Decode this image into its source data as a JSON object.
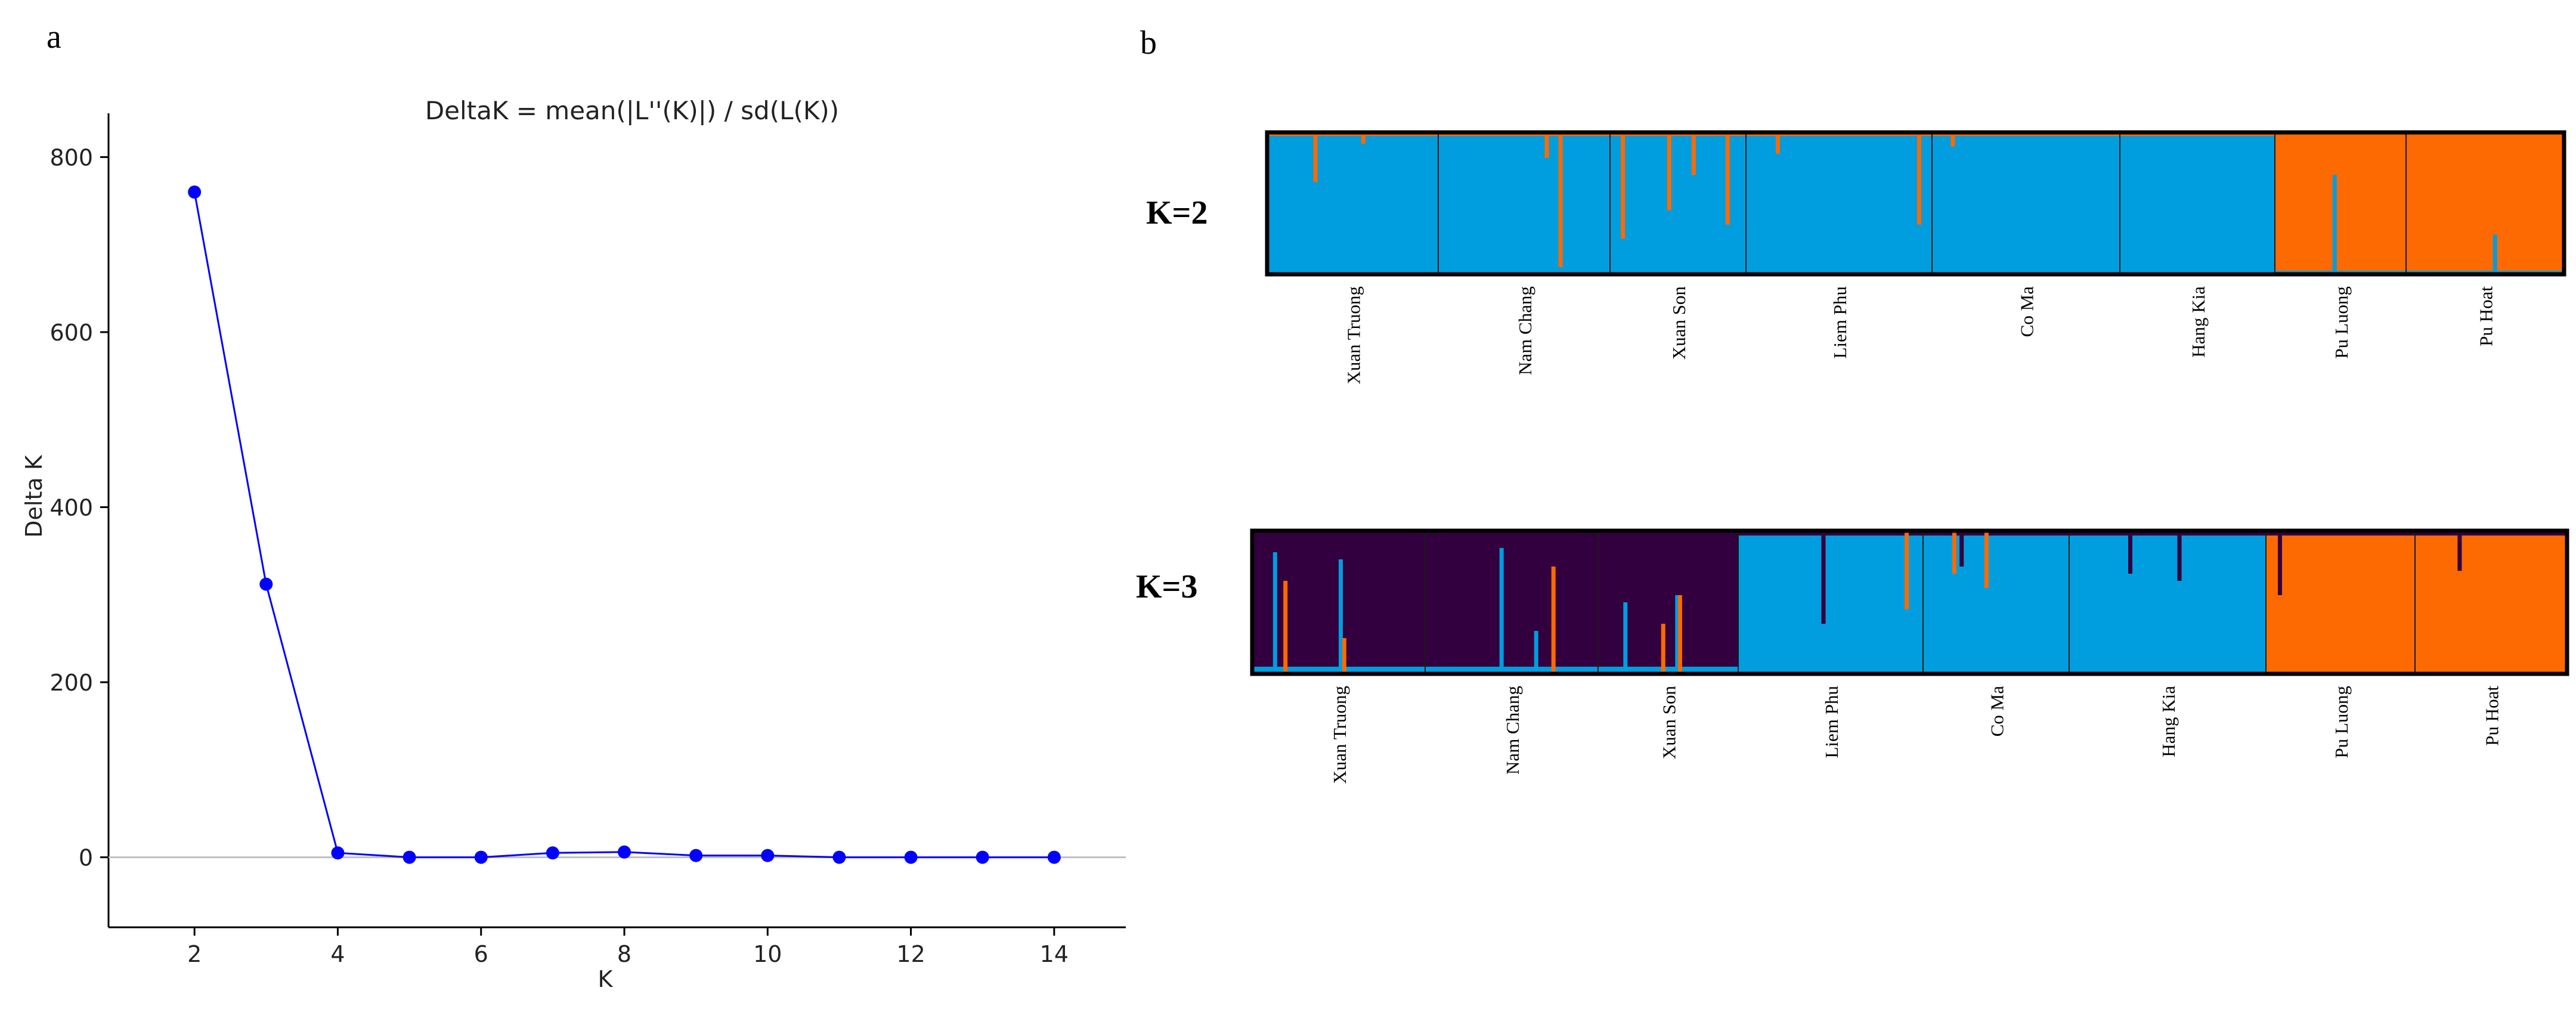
{
  "panel_a": {
    "letter": "a"
  },
  "panel_b": {
    "letter": "b"
  },
  "chart_data": [
    {
      "type": "line",
      "title": "DeltaK = mean(|L''(K)|) / sd(L(K))",
      "xlabel": "K",
      "ylabel": "Delta K",
      "x": [
        2,
        3,
        4,
        5,
        6,
        7,
        8,
        9,
        10,
        11,
        12,
        13,
        14
      ],
      "values": [
        760,
        312,
        5,
        0,
        0,
        5,
        6,
        2,
        2,
        0,
        0,
        0,
        0
      ],
      "xticks": [
        2,
        4,
        6,
        8,
        10,
        12,
        14
      ],
      "yticks": [
        0,
        200,
        400,
        600,
        800
      ],
      "xlim": [
        0.8,
        15.0
      ],
      "ylim": [
        -80,
        850
      ],
      "grid": false,
      "line_color": "#0000ff",
      "zero_line_color": "#c0c0c0"
    },
    {
      "type": "bar",
      "subtype": "stacked-admixture",
      "label": "K=2",
      "populations": [
        "Xuan Truong",
        "Nam Chang",
        "Xuan Son",
        "Liem Phu",
        "Co Ma",
        "Hang Kia",
        "Pu Luong",
        "Pu Hoat"
      ],
      "dominant_cluster": [
        1,
        1,
        1,
        1,
        1,
        1,
        2,
        2
      ],
      "clusters": [
        {
          "name": "cluster-1",
          "color": "#009ddf"
        },
        {
          "name": "cluster-2",
          "color": "#fd6a02"
        }
      ],
      "admixed_individuals": [
        {
          "population": 0,
          "position": 0.27,
          "secondary_cluster": 2,
          "fraction": 0.35
        },
        {
          "population": 0,
          "position": 0.55,
          "secondary_cluster": 2,
          "fraction": 0.08
        },
        {
          "population": 1,
          "position": 0.7,
          "secondary_cluster": 2,
          "fraction": 0.95
        },
        {
          "population": 1,
          "position": 0.62,
          "secondary_cluster": 2,
          "fraction": 0.18
        },
        {
          "population": 2,
          "position": 0.08,
          "secondary_cluster": 2,
          "fraction": 0.75
        },
        {
          "population": 2,
          "position": 0.42,
          "secondary_cluster": 2,
          "fraction": 0.55
        },
        {
          "population": 2,
          "position": 0.6,
          "secondary_cluster": 2,
          "fraction": 0.3
        },
        {
          "population": 2,
          "position": 0.85,
          "secondary_cluster": 2,
          "fraction": 0.65
        },
        {
          "population": 3,
          "position": 0.16,
          "secondary_cluster": 2,
          "fraction": 0.15
        },
        {
          "population": 3,
          "position": 0.92,
          "secondary_cluster": 2,
          "fraction": 0.65
        },
        {
          "population": 4,
          "position": 0.1,
          "secondary_cluster": 2,
          "fraction": 0.1
        },
        {
          "population": 6,
          "position": 0.44,
          "secondary_cluster": 1,
          "fraction": 0.7
        },
        {
          "population": 7,
          "position": 0.55,
          "secondary_cluster": 1,
          "fraction": 0.28
        }
      ]
    },
    {
      "type": "bar",
      "subtype": "stacked-admixture",
      "label": "K=3",
      "populations": [
        "Xuan Truong",
        "Nam Chang",
        "Xuan Son",
        "Liem Phu",
        "Co Ma",
        "Hang Kia",
        "Pu Luong",
        "Pu Hoat"
      ],
      "dominant_cluster": [
        3,
        3,
        3,
        1,
        1,
        1,
        2,
        2
      ],
      "clusters": [
        {
          "name": "cluster-1",
          "color": "#009ddf"
        },
        {
          "name": "cluster-2",
          "color": "#fd6a02"
        },
        {
          "name": "cluster-3",
          "color": "#33003f"
        }
      ],
      "admixed_individuals": [
        {
          "population": 0,
          "position": 0.12,
          "secondary_cluster": 1,
          "fraction": 0.85
        },
        {
          "population": 0,
          "position": 0.18,
          "secondary_cluster": 2,
          "fraction": 0.65
        },
        {
          "population": 0,
          "position": 0.5,
          "secondary_cluster": 1,
          "fraction": 0.8
        },
        {
          "population": 0,
          "position": 0.52,
          "secondary_cluster": 2,
          "fraction": 0.25
        },
        {
          "population": 1,
          "position": 0.43,
          "secondary_cluster": 1,
          "fraction": 0.88
        },
        {
          "population": 1,
          "position": 0.63,
          "secondary_cluster": 1,
          "fraction": 0.3
        },
        {
          "population": 1,
          "position": 0.73,
          "secondary_cluster": 2,
          "fraction": 0.75
        },
        {
          "population": 2,
          "position": 0.18,
          "secondary_cluster": 1,
          "fraction": 0.5
        },
        {
          "population": 2,
          "position": 0.45,
          "secondary_cluster": 2,
          "fraction": 0.35
        },
        {
          "population": 2,
          "position": 0.55,
          "secondary_cluster": 1,
          "fraction": 0.55
        },
        {
          "population": 2,
          "position": 0.57,
          "secondary_cluster": 2,
          "fraction": 0.55
        },
        {
          "population": 3,
          "position": 0.45,
          "secondary_cluster": 3,
          "fraction": 0.65
        },
        {
          "population": 3,
          "position": 0.9,
          "secondary_cluster": 2,
          "fraction": 0.55
        },
        {
          "population": 4,
          "position": 0.2,
          "secondary_cluster": 2,
          "fraction": 0.3
        },
        {
          "population": 4,
          "position": 0.25,
          "secondary_cluster": 3,
          "fraction": 0.25
        },
        {
          "population": 4,
          "position": 0.42,
          "secondary_cluster": 2,
          "fraction": 0.4
        },
        {
          "population": 5,
          "position": 0.3,
          "secondary_cluster": 3,
          "fraction": 0.3
        },
        {
          "population": 5,
          "position": 0.55,
          "secondary_cluster": 3,
          "fraction": 0.35
        },
        {
          "population": 6,
          "position": 0.08,
          "secondary_cluster": 3,
          "fraction": 0.45
        },
        {
          "population": 7,
          "position": 0.28,
          "secondary_cluster": 3,
          "fraction": 0.28
        }
      ]
    }
  ]
}
